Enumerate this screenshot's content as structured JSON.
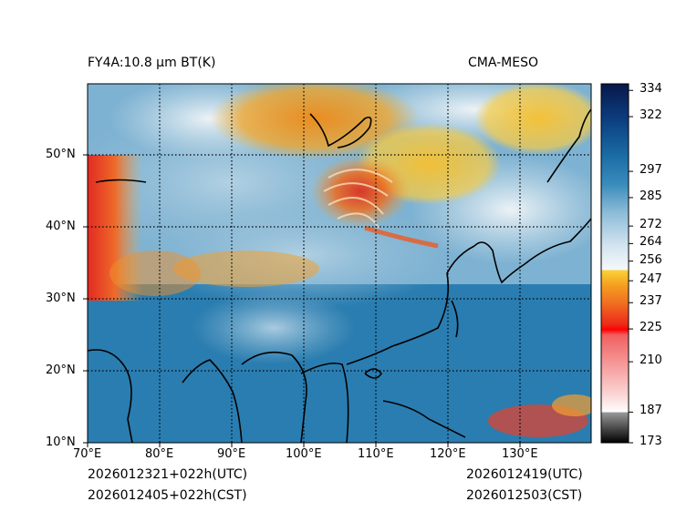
{
  "header": {
    "title_left": "FY4A:10.8 µm BT(K)",
    "title_right": "CMA-MESO"
  },
  "footer": {
    "init_utc": "2026012321+022h(UTC)",
    "init_cst": "2026012405+022h(CST)",
    "valid_utc": "2026012419(UTC)",
    "valid_cst": "2026012503(CST)"
  },
  "map": {
    "lat_labels": [
      "50°N",
      "40°N",
      "30°N",
      "20°N",
      "10°N"
    ],
    "lon_labels": [
      "70°E",
      "80°E",
      "90°E",
      "100°E",
      "110°E",
      "120°E",
      "130°E"
    ],
    "lon_range": [
      70,
      140
    ],
    "lat_range": [
      10,
      60
    ],
    "lat_lines": [
      50,
      40,
      30,
      20
    ],
    "lon_lines": [
      80,
      90,
      100,
      110,
      120,
      130
    ]
  },
  "colorbar": {
    "range": [
      173,
      337
    ],
    "ticks": [
      "334",
      "322",
      "297",
      "285",
      "272",
      "264",
      "256",
      "247",
      "237",
      "225",
      "210",
      "187",
      "173"
    ],
    "tick_values": [
      334,
      322,
      297,
      285,
      272,
      264,
      256,
      247,
      237,
      225,
      210,
      187,
      173
    ]
  },
  "colors": {
    "ocean_blue": "#2779ad",
    "cloud_white": "#e8f0f4",
    "cold_orange": "#f0a020",
    "very_cold_red": "#e03020",
    "coast_line": "#000000"
  }
}
